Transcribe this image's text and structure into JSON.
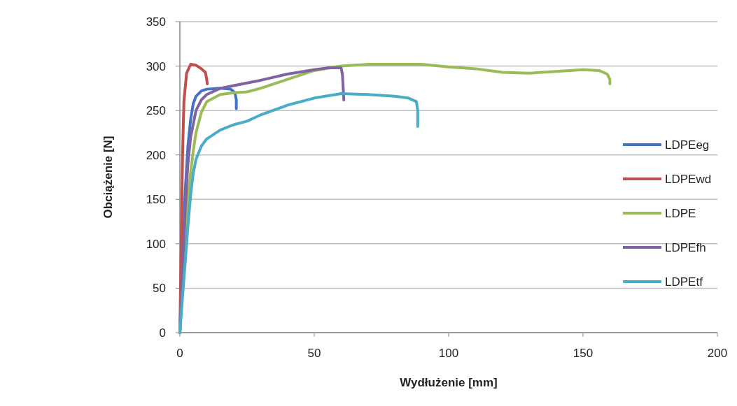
{
  "chart_data": {
    "type": "line",
    "xlabel": "Wydłużenie [mm]",
    "ylabel": "Obciążenie [N]",
    "xlim": [
      0,
      200
    ],
    "ylim": [
      0,
      350
    ],
    "xticks": [
      0,
      50,
      100,
      150,
      200
    ],
    "yticks": [
      0,
      50,
      100,
      150,
      200,
      250,
      300,
      350
    ],
    "grid": "y",
    "legend": "right",
    "marker": "none",
    "line_style": "solid",
    "series": [
      {
        "name": "LDPEeg",
        "color": "#4472c4",
        "x": [
          0,
          1,
          2,
          3,
          4,
          5,
          6,
          8,
          10,
          15,
          19,
          20.5,
          21,
          21
        ],
        "values": [
          0,
          80,
          160,
          210,
          240,
          258,
          266,
          272,
          274,
          275,
          274,
          270,
          262,
          252
        ]
      },
      {
        "name": "LDPEwd",
        "color": "#c0504d",
        "x": [
          0,
          0.5,
          1,
          1.5,
          2.5,
          4,
          6,
          8,
          9.5,
          10,
          10.2
        ],
        "values": [
          0,
          100,
          200,
          260,
          292,
          302,
          301,
          297,
          293,
          285,
          280
        ]
      },
      {
        "name": "LDPE",
        "color": "#9bbb59",
        "x": [
          0,
          1,
          2,
          3,
          4,
          5,
          6,
          8,
          10,
          15,
          20,
          25,
          30,
          40,
          50,
          60,
          70,
          80,
          90,
          100,
          110,
          120,
          130,
          140,
          150,
          156,
          159,
          160,
          160
        ],
        "values": [
          0,
          60,
          110,
          150,
          180,
          205,
          225,
          248,
          260,
          268,
          270,
          271,
          275,
          285,
          295,
          300,
          302,
          302,
          302,
          299,
          297,
          293,
          292,
          294,
          296,
          295,
          291,
          285,
          280
        ]
      },
      {
        "name": "LDPEfh",
        "color": "#8064a2",
        "x": [
          0,
          1,
          2,
          3,
          4,
          6,
          8,
          10,
          15,
          20,
          30,
          40,
          50,
          55,
          60,
          60.5,
          61
        ],
        "values": [
          0,
          70,
          140,
          190,
          220,
          250,
          262,
          268,
          275,
          278,
          284,
          291,
          296,
          298,
          298,
          290,
          262
        ]
      },
      {
        "name": "LDPEtf",
        "color": "#4bacc6",
        "x": [
          0,
          1,
          2,
          3,
          4,
          5,
          6,
          8,
          10,
          15,
          20,
          25,
          30,
          40,
          50,
          60,
          70,
          80,
          85,
          88,
          88.5,
          88.5
        ],
        "values": [
          0,
          40,
          80,
          120,
          155,
          180,
          195,
          210,
          218,
          228,
          234,
          238,
          245,
          256,
          264,
          269,
          268,
          266,
          264,
          260,
          250,
          232
        ]
      }
    ]
  }
}
